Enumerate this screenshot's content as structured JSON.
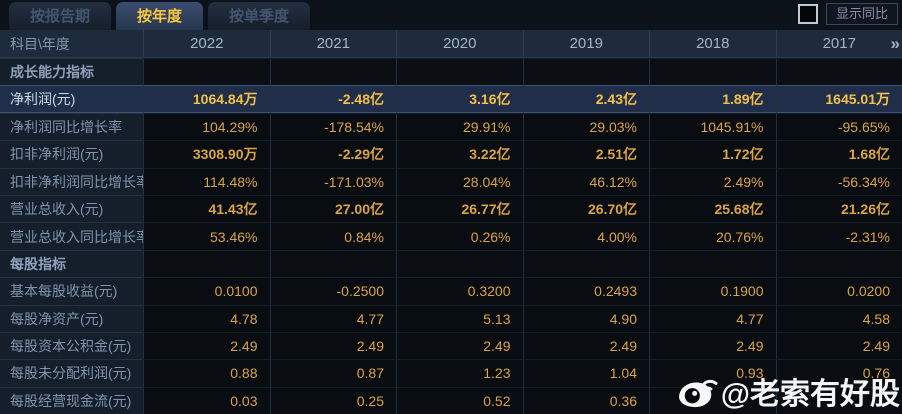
{
  "tabs": [
    {
      "label": "按报告期",
      "active": false
    },
    {
      "label": "按年度",
      "active": true
    },
    {
      "label": "按单季度",
      "active": false
    }
  ],
  "controls": {
    "show_yoy_label": "显示同比",
    "checkbox_checked": false
  },
  "table": {
    "corner_header": "科目\\年度",
    "years": [
      "2022",
      "2021",
      "2020",
      "2019",
      "2018",
      "2017"
    ],
    "more_icon": "»",
    "rows": [
      {
        "type": "section",
        "label": "成长能力指标"
      },
      {
        "type": "data",
        "label": "净利润(元)",
        "selected": true,
        "values": [
          "1064.84万",
          "-2.48亿",
          "3.16亿",
          "2.43亿",
          "1.89亿",
          "1645.01万"
        ]
      },
      {
        "type": "data",
        "label": "净利润同比增长率",
        "values": [
          "104.29%",
          "-178.54%",
          "29.91%",
          "29.03%",
          "1045.91%",
          "-95.65%"
        ]
      },
      {
        "type": "data",
        "label": "扣非净利润(元)",
        "values": [
          "3308.90万",
          "-2.29亿",
          "3.22亿",
          "2.51亿",
          "1.72亿",
          "1.68亿"
        ]
      },
      {
        "type": "data",
        "label": "扣非净利润同比增长率",
        "values": [
          "114.48%",
          "-171.03%",
          "28.04%",
          "46.12%",
          "2.49%",
          "-56.34%"
        ]
      },
      {
        "type": "data",
        "label": "营业总收入(元)",
        "values": [
          "41.43亿",
          "27.00亿",
          "26.77亿",
          "26.70亿",
          "25.68亿",
          "21.26亿"
        ]
      },
      {
        "type": "data",
        "label": "营业总收入同比增长率",
        "values": [
          "53.46%",
          "0.84%",
          "0.26%",
          "4.00%",
          "20.76%",
          "-2.31%"
        ]
      },
      {
        "type": "section",
        "label": "每股指标"
      },
      {
        "type": "data",
        "label": "基本每股收益(元)",
        "values": [
          "0.0100",
          "-0.2500",
          "0.3200",
          "0.2493",
          "0.1900",
          "0.0200"
        ]
      },
      {
        "type": "data",
        "label": "每股净资产(元)",
        "values": [
          "4.78",
          "4.77",
          "5.13",
          "4.90",
          "4.77",
          "4.58"
        ]
      },
      {
        "type": "data",
        "label": "每股资本公积金(元)",
        "values": [
          "2.49",
          "2.49",
          "2.49",
          "2.49",
          "2.49",
          "2.49"
        ]
      },
      {
        "type": "data",
        "label": "每股未分配利润(元)",
        "values": [
          "0.88",
          "0.87",
          "1.23",
          "1.04",
          "0.93",
          "0.76"
        ]
      },
      {
        "type": "data",
        "label": "每股经营现金流(元)",
        "values": [
          "0.03",
          "0.25",
          "0.52",
          "0.36",
          "",
          ""
        ]
      }
    ]
  },
  "watermark": {
    "text": "@老索有好股"
  },
  "colors": {
    "accent_gold": "#dca43d",
    "selected_gold": "#f5c044",
    "active_tab_text": "#f8c63e",
    "selected_row_bg": "#202e4a",
    "header_bg": "#1e2b3d",
    "label_col_bg": "#151f2c"
  }
}
